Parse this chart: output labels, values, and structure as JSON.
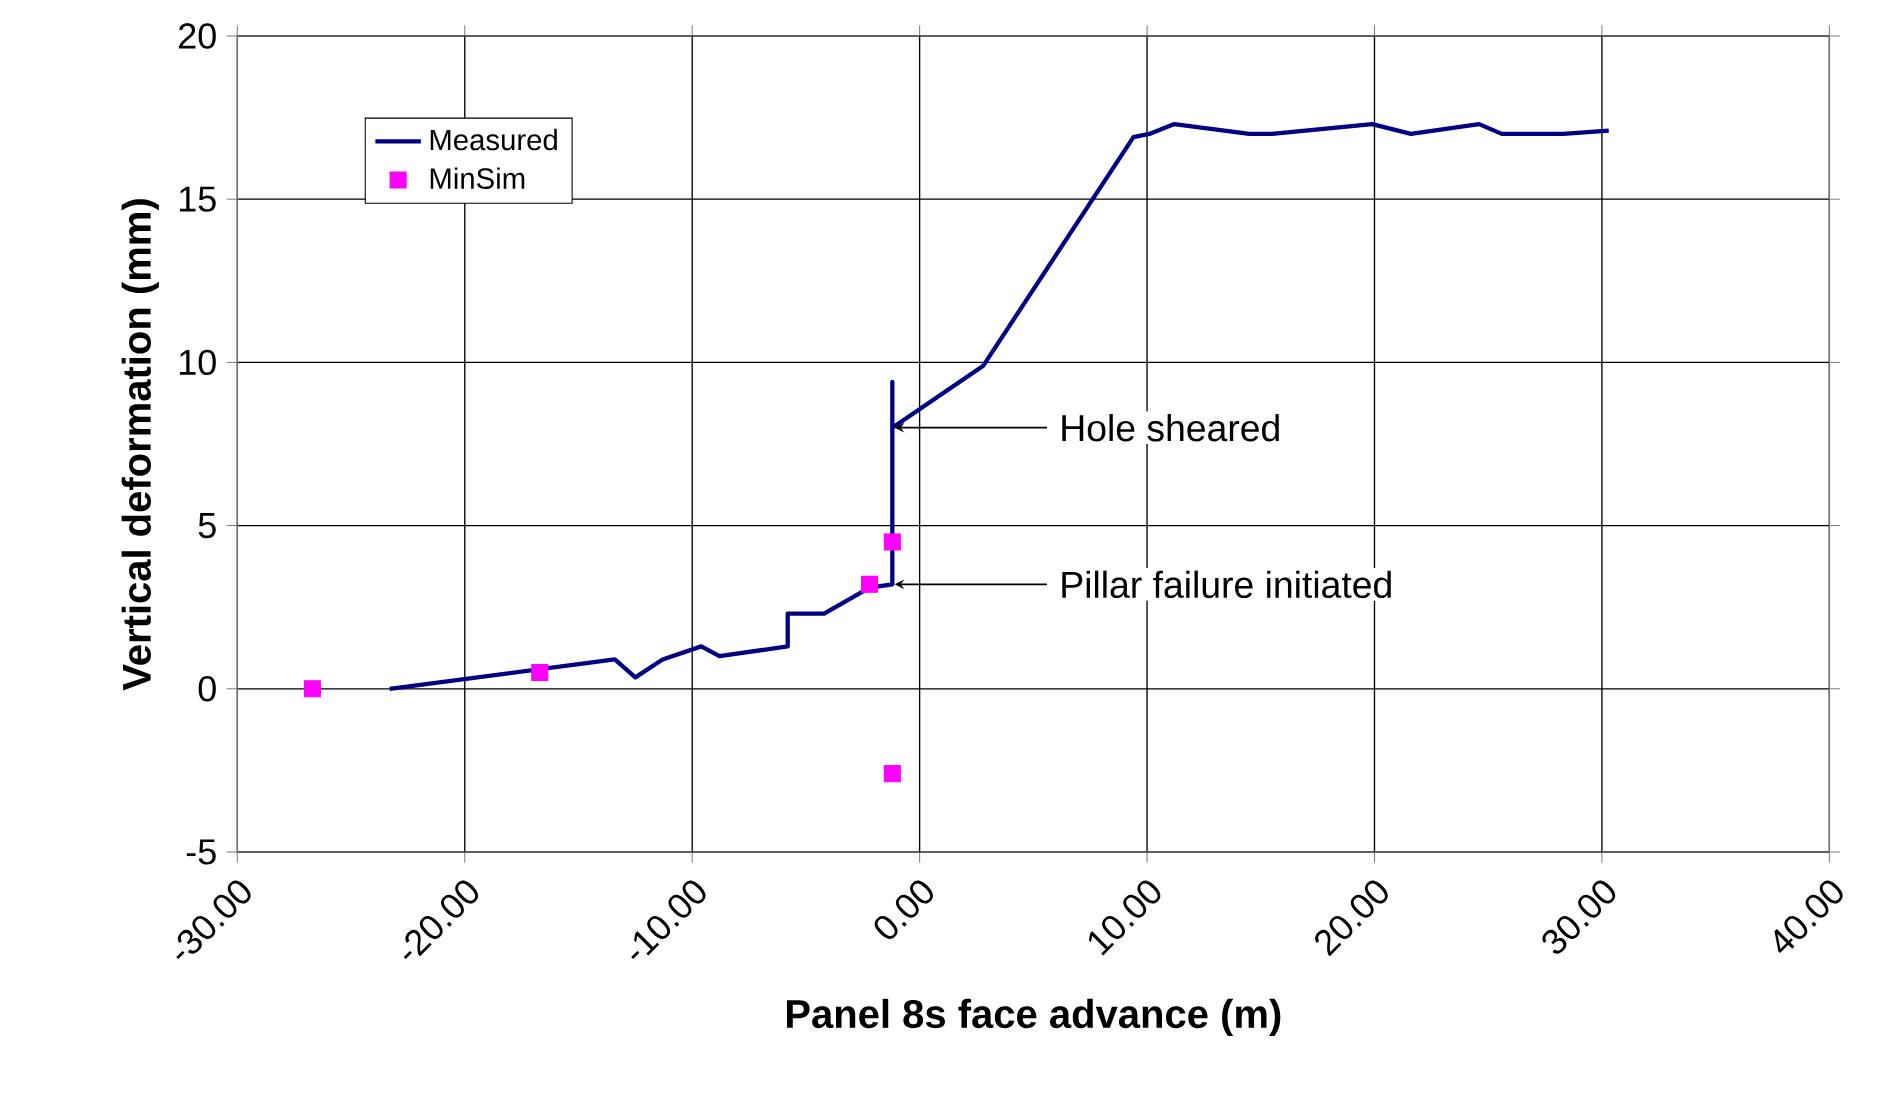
{
  "chart_data": {
    "type": "line",
    "xlabel": "Panel 8s face advance (m)",
    "ylabel": "Vertical deformation (mm)",
    "xlim": [
      -30,
      40
    ],
    "ylim": [
      -5,
      20
    ],
    "xticks": [
      {
        "value": -30,
        "label": "-30.00"
      },
      {
        "value": -20,
        "label": "-20.00"
      },
      {
        "value": -10,
        "label": "-10.00"
      },
      {
        "value": 0,
        "label": "0.00"
      },
      {
        "value": 10,
        "label": "10.00"
      },
      {
        "value": 20,
        "label": "20.00"
      },
      {
        "value": 30,
        "label": "30.00"
      },
      {
        "value": 40,
        "label": "40.00"
      }
    ],
    "yticks": [
      -5,
      0,
      5,
      10,
      15,
      20
    ],
    "grid": true,
    "legend": "top left",
    "line_style": "solid",
    "series": [
      {
        "name": "Measured",
        "marker": "none",
        "color": "#000080",
        "x": [
          -23.3,
          -13.4,
          -12.5,
          -11.3,
          -9.6,
          -8.8,
          -5.8,
          -5.8,
          -4.2,
          -2.2,
          -1.2,
          -1.2,
          -1.2,
          2.8,
          9.4,
          10.1,
          11.2,
          14.5,
          15.5,
          19.9,
          21.6,
          24.6,
          25.6,
          28.3,
          30.3
        ],
        "values": [
          0,
          0.9,
          0.35,
          0.9,
          1.3,
          1.0,
          1.3,
          2.3,
          2.3,
          3.1,
          3.2,
          9.4,
          8.0,
          9.9,
          16.9,
          17.0,
          17.3,
          17.0,
          17.0,
          17.3,
          17.0,
          17.3,
          17.0,
          17.0,
          17.1
        ]
      },
      {
        "name": "MinSim",
        "type": "scatter",
        "marker": "square",
        "color": "#ff00ff",
        "x": [
          -26.7,
          -16.7,
          -2.2,
          -1.2,
          -1.2
        ],
        "values": [
          0,
          0.5,
          3.2,
          4.5,
          -2.6
        ]
      }
    ],
    "annotations": [
      {
        "text": "Hole sheared",
        "x": -1.2,
        "y": 8.0
      },
      {
        "text": "Pillar failure initiated",
        "x": -1.2,
        "y": 3.2
      }
    ]
  }
}
